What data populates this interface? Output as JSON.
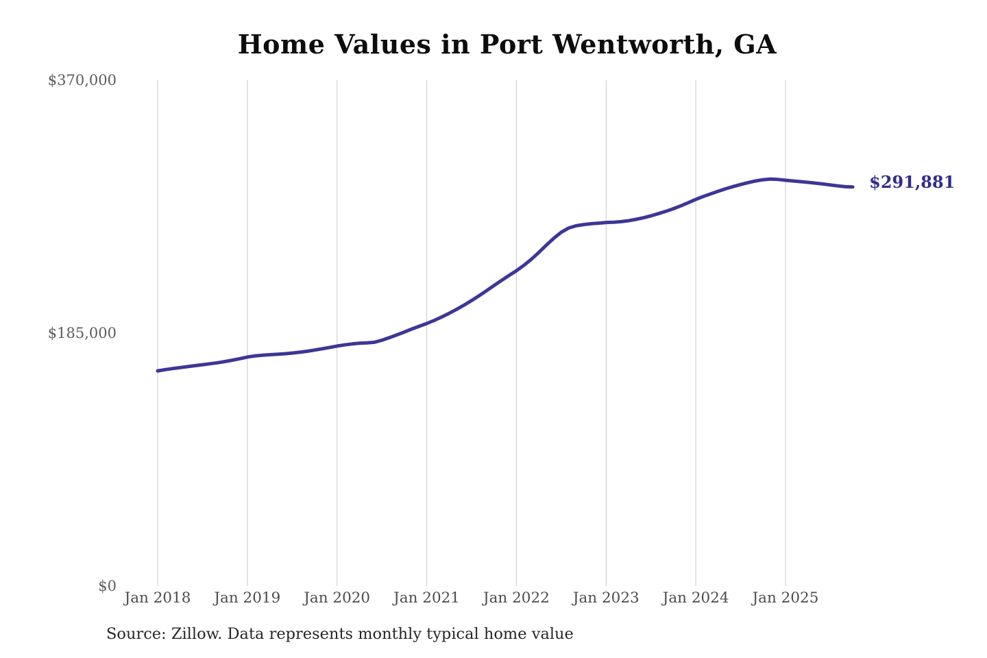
{
  "page": {
    "background_color": "#ffffff"
  },
  "chart_data": {
    "type": "line",
    "title": "Home Values in Port Wentworth, GA",
    "xlabel": "",
    "ylabel": "",
    "ylim": [
      0,
      370000
    ],
    "grid": "vertical-yearly-only",
    "legend": "none",
    "x_interval": "monthly",
    "x_start": "Jan 2018",
    "x_end": "Oct 2025",
    "x_tick_labels": [
      "Jan 2018",
      "Jan 2019",
      "Jan 2020",
      "Jan 2021",
      "Jan 2022",
      "Jan 2023",
      "Jan 2024",
      "Jan 2025"
    ],
    "y_ticks": [
      {
        "label": "$0",
        "value": 0
      },
      {
        "label": "$185,000",
        "value": 185000
      },
      {
        "label": "$370,000",
        "value": 370000
      }
    ],
    "end_label": "$291,881",
    "end_value": 291881,
    "source_note": "Source: Zillow. Data represents monthly typical home value",
    "colors": {
      "line": "#3c3796",
      "end_label": "#312c8f",
      "gridline": "#c9c9c9",
      "tick_text": "#4c4c4c",
      "title_text": "#0d0d0d"
    },
    "series": [
      {
        "name": "Typical home value (monthly)",
        "color": "#3c3796",
        "values": [
          157400,
          158300,
          159100,
          159800,
          160500,
          161200,
          161900,
          162600,
          163300,
          164200,
          165200,
          166300,
          167500,
          168300,
          168800,
          169200,
          169500,
          169900,
          170400,
          171000,
          171700,
          172600,
          173500,
          174500,
          175500,
          176400,
          177100,
          177600,
          177900,
          178300,
          179800,
          181700,
          183700,
          185800,
          188000,
          190000,
          192000,
          194300,
          196800,
          199500,
          202400,
          205500,
          208800,
          212300,
          216000,
          219800,
          223500,
          227100,
          230600,
          234600,
          239000,
          244000,
          249300,
          254400,
          258800,
          261900,
          263500,
          264400,
          265000,
          265400,
          265900,
          266100,
          266500,
          267200,
          268200,
          269400,
          270800,
          272400,
          274100,
          276000,
          278100,
          280400,
          282800,
          284900,
          286900,
          288800,
          290600,
          292200,
          293700,
          295100,
          296300,
          297200,
          297700,
          297400,
          296800,
          296300,
          295800,
          295300,
          294700,
          294100,
          293400,
          292700,
          292100,
          291881
        ]
      }
    ]
  }
}
